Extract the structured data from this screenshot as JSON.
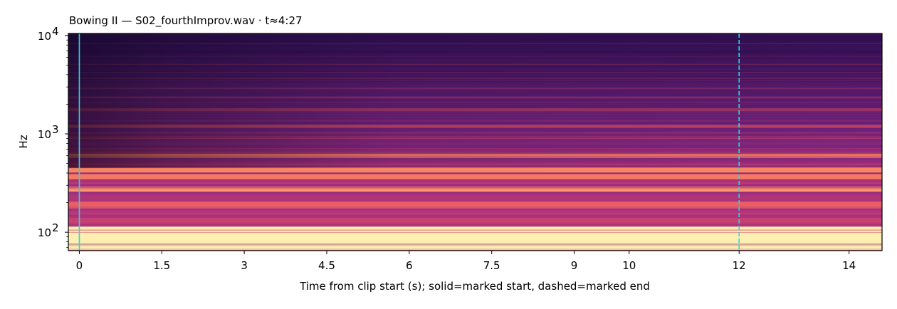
{
  "chart_data": {
    "type": "heatmap",
    "title": "Bowing II  —  S02_fourthImprov.wav · t≈4:27",
    "xlabel": "Time from clip start (s); solid=marked start, dashed=marked end",
    "ylabel": "Hz",
    "xlim": [
      -0.2,
      14.6
    ],
    "ylim": [
      65,
      10500
    ],
    "yscale": "log",
    "colormap": "magma",
    "x_ticks": [
      0,
      1.5,
      3,
      4.5,
      6,
      7.5,
      9,
      10,
      12,
      14
    ],
    "x_tick_labels": [
      "0",
      "1.5",
      "3",
      "4.5",
      "6",
      "7.5",
      "9",
      "10",
      "12",
      "14"
    ],
    "y_ticks": [
      100,
      1000,
      10000
    ],
    "y_tick_labels": [
      {
        "base": "10",
        "exp": "2"
      },
      {
        "base": "10",
        "exp": "3"
      },
      {
        "base": "10",
        "exp": "4"
      }
    ],
    "markers": [
      {
        "name": "marked start",
        "x": 0,
        "style": "solid",
        "color": "#22d8e6"
      },
      {
        "name": "marked end",
        "x": 12,
        "style": "dashed",
        "color": "#22d8e6"
      }
    ],
    "bands": [
      {
        "f_lo": 66,
        "f_hi": 114,
        "level": 0.97
      },
      {
        "f_lo": 120,
        "f_hi": 140,
        "level": 0.55
      },
      {
        "f_lo": 150,
        "f_hi": 165,
        "level": 0.5
      },
      {
        "f_lo": 175,
        "f_hi": 205,
        "level": 0.66
      },
      {
        "f_lo": 255,
        "f_hi": 290,
        "level": 0.78
      },
      {
        "f_lo": 345,
        "f_hi": 390,
        "level": 0.72
      },
      {
        "f_lo": 405,
        "f_hi": 455,
        "level": 0.75
      },
      {
        "f_lo": 570,
        "f_hi": 630,
        "level": 0.72
      },
      {
        "f_lo": 1150,
        "f_hi": 1230,
        "level": 0.62
      },
      {
        "f_lo": 1700,
        "f_hi": 1800,
        "level": 0.55
      },
      {
        "f_lo": 2300,
        "f_hi": 2400,
        "level": 0.5
      },
      {
        "f_lo": 2850,
        "f_hi": 2950,
        "level": 0.48
      }
    ],
    "background_level": 0.38,
    "grid": false
  }
}
